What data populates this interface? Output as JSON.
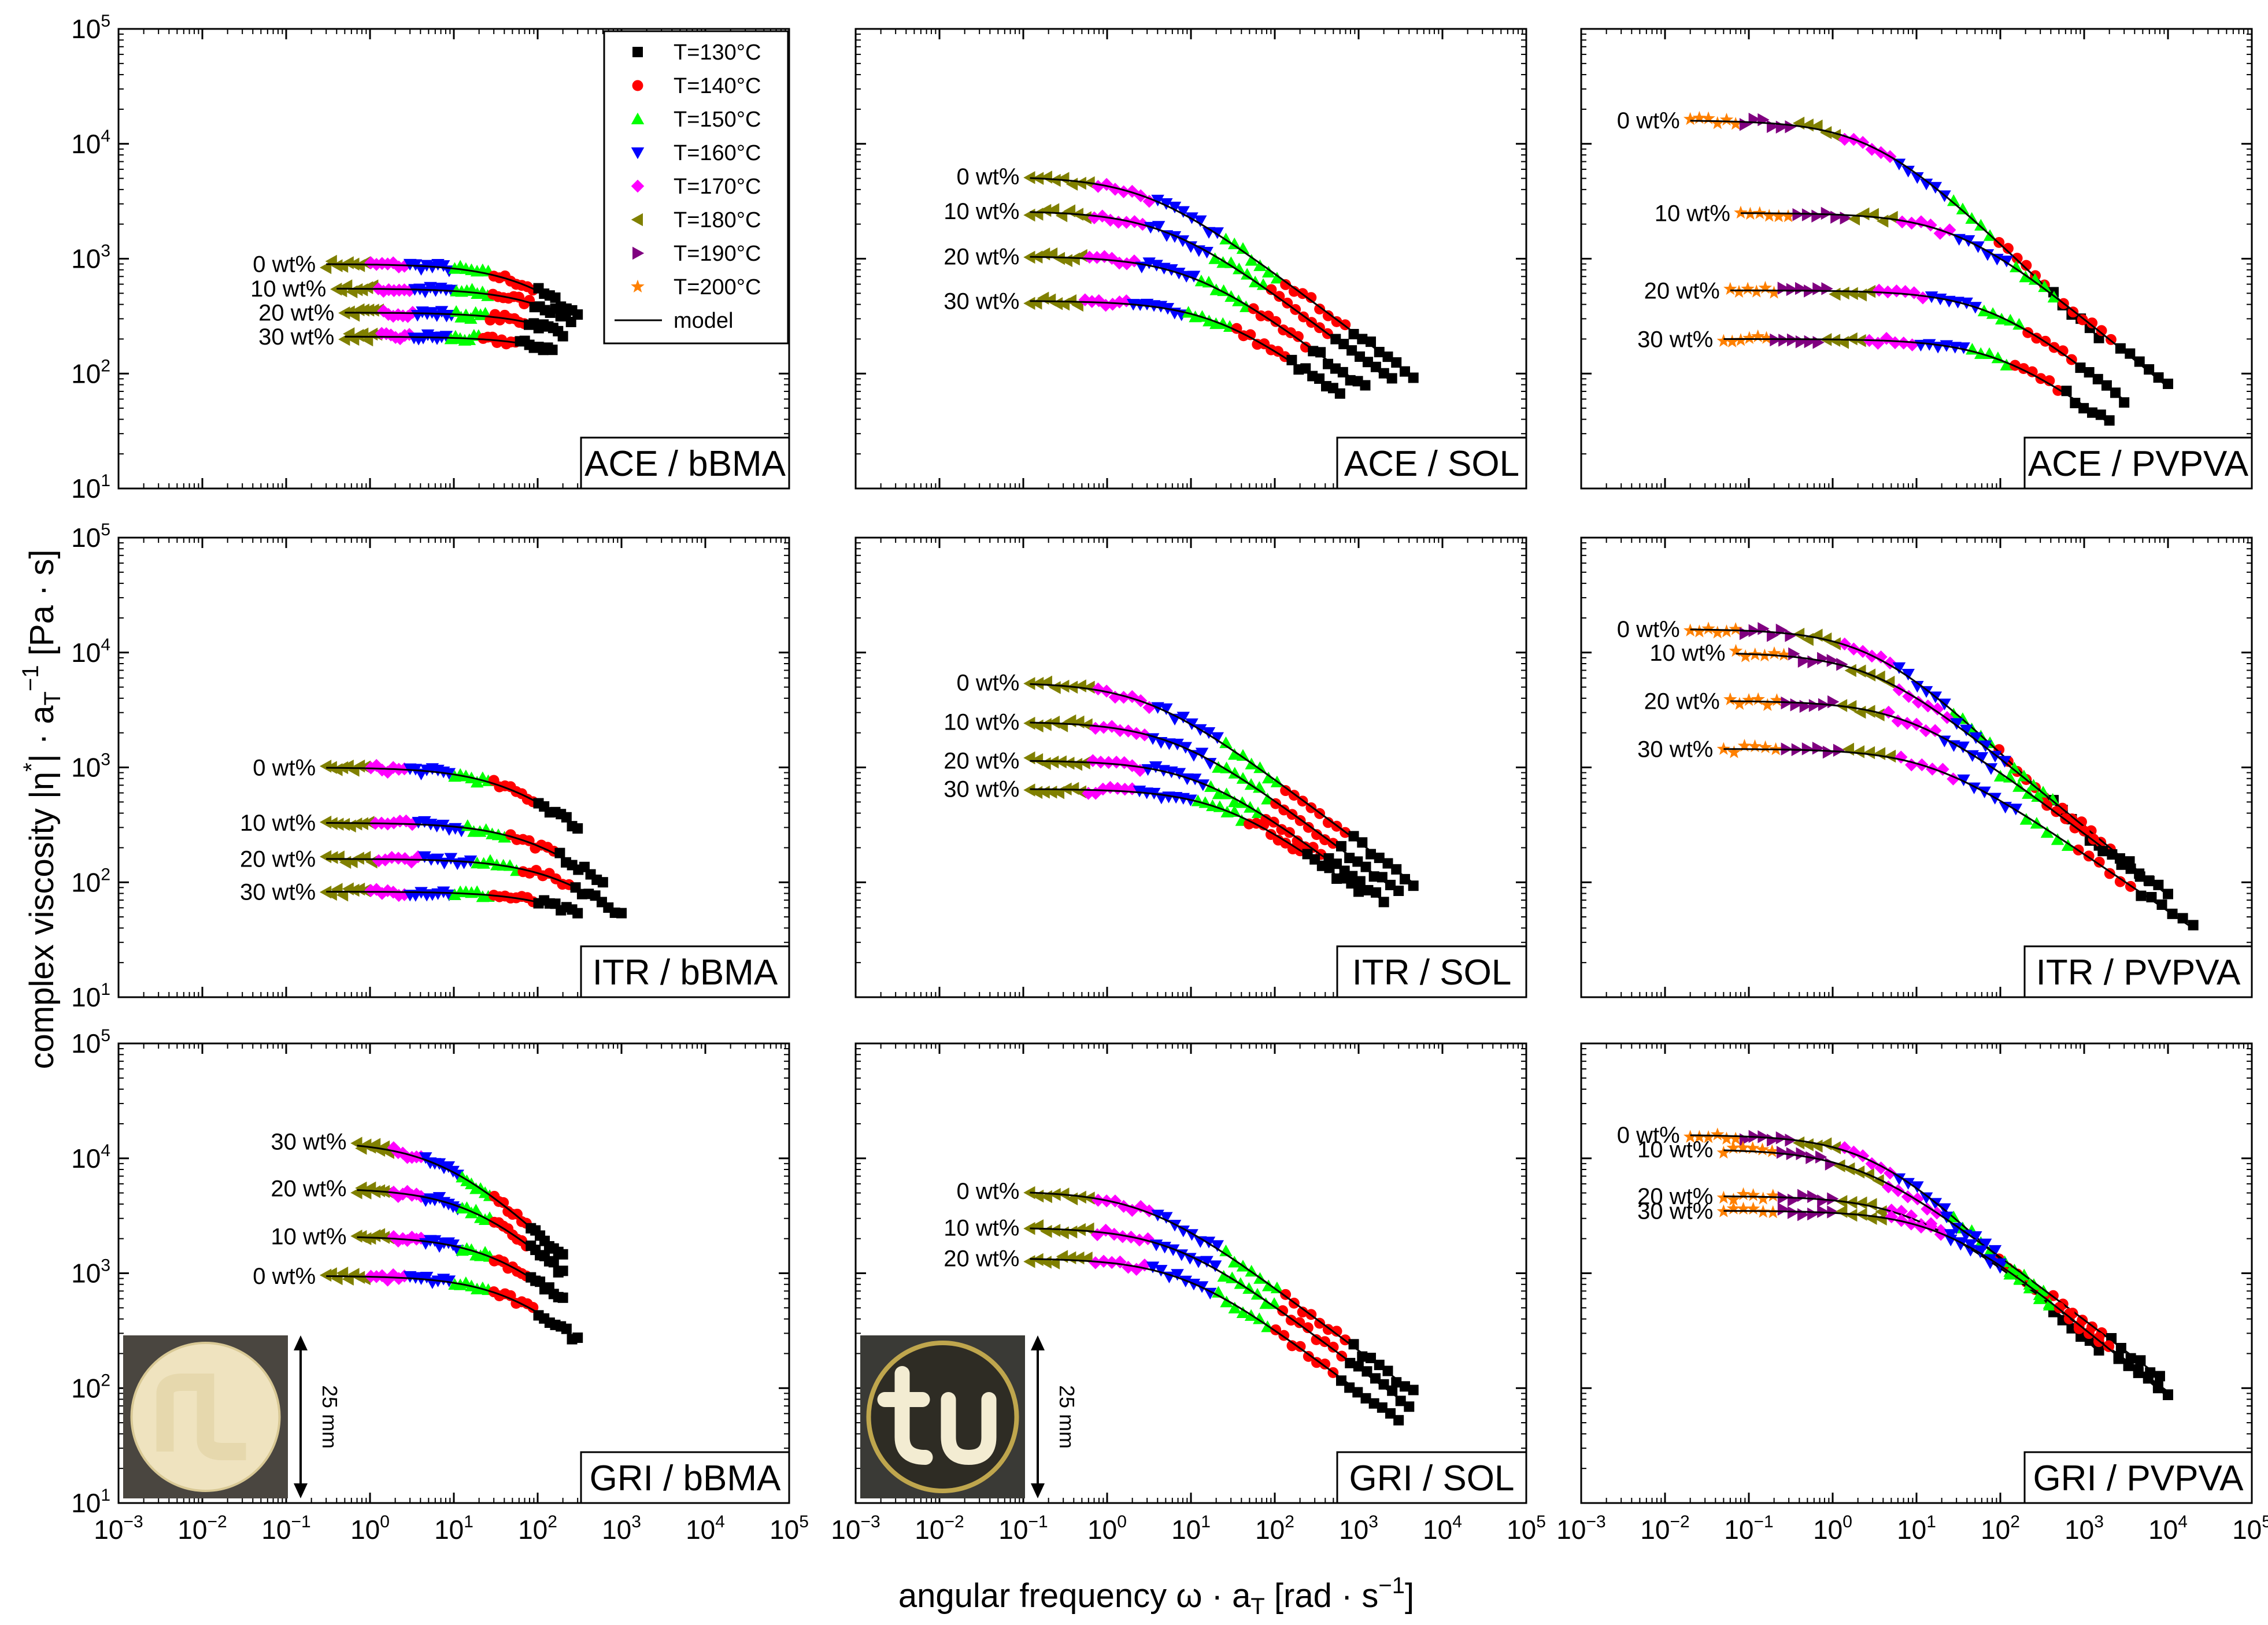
{
  "axes_titles": {
    "x": "angular frequency ω · a",
    "x_sub": "T",
    "x_unit": " [rad · s",
    "x_unit_sup": "−1",
    "x_end": "]",
    "y": "complex viscosity |η",
    "y_star": "*",
    "y_mid": "| · a",
    "y_sub": "T",
    "y_sup": "−1",
    "y_unit": " [Pa · s]"
  },
  "x_ticks": [
    {
      "base": "10",
      "exp": "−3"
    },
    {
      "base": "10",
      "exp": "−2"
    },
    {
      "base": "10",
      "exp": "−1"
    },
    {
      "base": "10",
      "exp": "0"
    },
    {
      "base": "10",
      "exp": "1"
    },
    {
      "base": "10",
      "exp": "2"
    },
    {
      "base": "10",
      "exp": "3"
    },
    {
      "base": "10",
      "exp": "4"
    },
    {
      "base": "10",
      "exp": "5"
    }
  ],
  "y_ticks": [
    {
      "base": "10",
      "exp": "1"
    },
    {
      "base": "10",
      "exp": "2"
    },
    {
      "base": "10",
      "exp": "3"
    },
    {
      "base": "10",
      "exp": "4"
    },
    {
      "base": "10",
      "exp": "5"
    }
  ],
  "legend": {
    "entries": [
      {
        "label": "T=130°C",
        "marker": "square",
        "color": "#000000"
      },
      {
        "label": "T=140°C",
        "marker": "circle",
        "color": "#ff0000"
      },
      {
        "label": "T=150°C",
        "marker": "triangle-up",
        "color": "#00ff00"
      },
      {
        "label": "T=160°C",
        "marker": "triangle-down",
        "color": "#0000ff"
      },
      {
        "label": "T=170°C",
        "marker": "diamond",
        "color": "#ff00ff"
      },
      {
        "label": "T=180°C",
        "marker": "triangle-left",
        "color": "#808000"
      },
      {
        "label": "T=190°C",
        "marker": "triangle-right",
        "color": "#800080"
      },
      {
        "label": "T=200°C",
        "marker": "star",
        "color": "#ff8000"
      }
    ],
    "model_label": "model"
  },
  "insets": [
    {
      "panel": 6,
      "scale_text": "25 mm",
      "kind": "plain-disk"
    },
    {
      "panel": 7,
      "scale_text": "25 mm",
      "kind": "tu-disk"
    }
  ],
  "chart_data": [
    {
      "type": "scatter",
      "title": "ACE / bBMA",
      "x_scale": "log",
      "y_scale": "log",
      "xlim": [
        0.001,
        100000
      ],
      "ylim": [
        10,
        100000
      ],
      "series": [
        {
          "label": "0 wt%",
          "eta0": 900,
          "wc": 100,
          "n": 0.7,
          "xmin": 0.3,
          "xmax": 300
        },
        {
          "label": "10 wt%",
          "eta0": 550,
          "wc": 200,
          "n": 0.7,
          "xmin": 0.4,
          "xmax": 250
        },
        {
          "label": "20 wt%",
          "eta0": 340,
          "wc": 300,
          "n": 0.7,
          "xmin": 0.5,
          "xmax": 200
        },
        {
          "label": "30 wt%",
          "eta0": 210,
          "wc": 400,
          "n": 0.7,
          "xmin": 0.5,
          "xmax": 150
        }
      ]
    },
    {
      "type": "scatter",
      "title": "ACE / SOL",
      "x_scale": "log",
      "y_scale": "log",
      "xlim": [
        0.001,
        100000
      ],
      "ylim": [
        10,
        100000
      ],
      "series": [
        {
          "label": "0 wt%",
          "eta0": 5200,
          "wc": 3,
          "n": 0.55,
          "xmin": 0.12,
          "xmax": 4500
        },
        {
          "label": "10 wt%",
          "eta0": 2600,
          "wc": 5,
          "n": 0.55,
          "xmin": 0.12,
          "xmax": 2500
        },
        {
          "label": "20 wt%",
          "eta0": 1050,
          "wc": 10,
          "n": 0.55,
          "xmin": 0.12,
          "xmax": 1200
        },
        {
          "label": "30 wt%",
          "eta0": 430,
          "wc": 20,
          "n": 0.55,
          "xmin": 0.12,
          "xmax": 600
        }
      ]
    },
    {
      "type": "scatter",
      "title": "ACE / PVPVA",
      "x_scale": "log",
      "y_scale": "log",
      "xlim": [
        0.001,
        100000
      ],
      "ylim": [
        10,
        100000
      ],
      "series": [
        {
          "label": "0 wt%",
          "eta0": 16000,
          "wc": 3,
          "n": 0.7,
          "xmin": 0.02,
          "xmax": 1500
        },
        {
          "label": "10 wt%",
          "eta0": 2500,
          "wc": 30,
          "n": 0.6,
          "xmin": 0.08,
          "xmax": 10000
        },
        {
          "label": "20 wt%",
          "eta0": 530,
          "wc": 80,
          "n": 0.6,
          "xmin": 0.06,
          "xmax": 3000
        },
        {
          "label": "30 wt%",
          "eta0": 200,
          "wc": 100,
          "n": 0.55,
          "xmin": 0.05,
          "xmax": 2000
        }
      ]
    },
    {
      "type": "scatter",
      "title": "ITR / bBMA",
      "x_scale": "log",
      "y_scale": "log",
      "xlim": [
        0.001,
        100000
      ],
      "ylim": [
        10,
        100000
      ],
      "series": [
        {
          "label": "0 wt%",
          "eta0": 1000,
          "wc": 50,
          "n": 0.6,
          "xmin": 0.3,
          "xmax": 300
        },
        {
          "label": "10 wt%",
          "eta0": 330,
          "wc": 100,
          "n": 0.6,
          "xmin": 0.3,
          "xmax": 600
        },
        {
          "label": "20 wt%",
          "eta0": 160,
          "wc": 200,
          "n": 0.6,
          "xmin": 0.3,
          "xmax": 1000
        },
        {
          "label": "30 wt%",
          "eta0": 83,
          "wc": 300,
          "n": 0.6,
          "xmin": 0.3,
          "xmax": 300
        }
      ]
    },
    {
      "type": "scatter",
      "title": "ITR / SOL",
      "x_scale": "log",
      "y_scale": "log",
      "xlim": [
        0.001,
        100000
      ],
      "ylim": [
        10,
        100000
      ],
      "series": [
        {
          "label": "0 wt%",
          "eta0": 5500,
          "wc": 3,
          "n": 0.55,
          "xmin": 0.12,
          "xmax": 4500
        },
        {
          "label": "10 wt%",
          "eta0": 2500,
          "wc": 6,
          "n": 0.55,
          "xmin": 0.12,
          "xmax": 3000
        },
        {
          "label": "20 wt%",
          "eta0": 1150,
          "wc": 12,
          "n": 0.55,
          "xmin": 0.12,
          "xmax": 2000
        },
        {
          "label": "30 wt%",
          "eta0": 650,
          "wc": 25,
          "n": 0.55,
          "xmin": 0.12,
          "xmax": 1000
        }
      ]
    },
    {
      "type": "scatter",
      "title": "ITR / PVPVA",
      "x_scale": "log",
      "y_scale": "log",
      "xlim": [
        0.001,
        100000
      ],
      "ylim": [
        10,
        100000
      ],
      "series": [
        {
          "label": "0 wt%",
          "eta0": 16000,
          "wc": 3,
          "n": 0.7,
          "xmin": 0.02,
          "xmax": 1500
        },
        {
          "label": "10 wt%",
          "eta0": 10000,
          "wc": 3,
          "n": 0.6,
          "xmin": 0.07,
          "xmax": 10000
        },
        {
          "label": "20 wt%",
          "eta0": 3800,
          "wc": 8,
          "n": 0.55,
          "xmin": 0.06,
          "xmax": 6000
        },
        {
          "label": "30 wt%",
          "eta0": 1450,
          "wc": 15,
          "n": 0.5,
          "xmin": 0.05,
          "xmax": 20000
        }
      ]
    },
    {
      "type": "scatter",
      "title": "GRI / bBMA",
      "x_scale": "log",
      "y_scale": "log",
      "xlim": [
        0.001,
        100000
      ],
      "ylim": [
        10,
        100000
      ],
      "series": [
        {
          "label": "30 wt%",
          "eta0": 14000,
          "wc": 8,
          "n": 0.7,
          "xmin": 0.7,
          "xmax": 200
        },
        {
          "label": "20 wt%",
          "eta0": 5500,
          "wc": 20,
          "n": 0.7,
          "xmin": 0.7,
          "xmax": 200
        },
        {
          "label": "10 wt%",
          "eta0": 2100,
          "wc": 40,
          "n": 0.7,
          "xmin": 0.7,
          "xmax": 200
        },
        {
          "label": "0 wt%",
          "eta0": 950,
          "wc": 60,
          "n": 0.7,
          "xmin": 0.3,
          "xmax": 300
        }
      ]
    },
    {
      "type": "scatter",
      "title": "GRI / SOL",
      "x_scale": "log",
      "y_scale": "log",
      "xlim": [
        0.001,
        100000
      ],
      "ylim": [
        10,
        100000
      ],
      "series": [
        {
          "label": "0 wt%",
          "eta0": 5200,
          "wc": 3,
          "n": 0.55,
          "xmin": 0.12,
          "xmax": 4500
        },
        {
          "label": "10 wt%",
          "eta0": 2500,
          "wc": 6,
          "n": 0.55,
          "xmin": 0.12,
          "xmax": 4000
        },
        {
          "label": "20 wt%",
          "eta0": 1350,
          "wc": 8,
          "n": 0.55,
          "xmin": 0.12,
          "xmax": 3000
        }
      ]
    },
    {
      "type": "scatter",
      "title": "GRI / PVPVA",
      "x_scale": "log",
      "y_scale": "log",
      "xlim": [
        0.001,
        100000
      ],
      "ylim": [
        10,
        100000
      ],
      "series": [
        {
          "label": "0 wt%",
          "eta0": 16000,
          "wc": 3,
          "n": 0.7,
          "xmin": 0.02,
          "xmax": 1500
        },
        {
          "label": "10 wt%",
          "eta0": 12000,
          "wc": 2,
          "n": 0.55,
          "xmin": 0.05,
          "xmax": 8000
        },
        {
          "label": "20 wt%",
          "eta0": 4700,
          "wc": 8,
          "n": 0.55,
          "xmin": 0.05,
          "xmax": 10000
        },
        {
          "label": "30 wt%",
          "eta0": 3500,
          "wc": 20,
          "n": 0.6,
          "xmin": 0.05,
          "xmax": 10000
        }
      ]
    }
  ]
}
